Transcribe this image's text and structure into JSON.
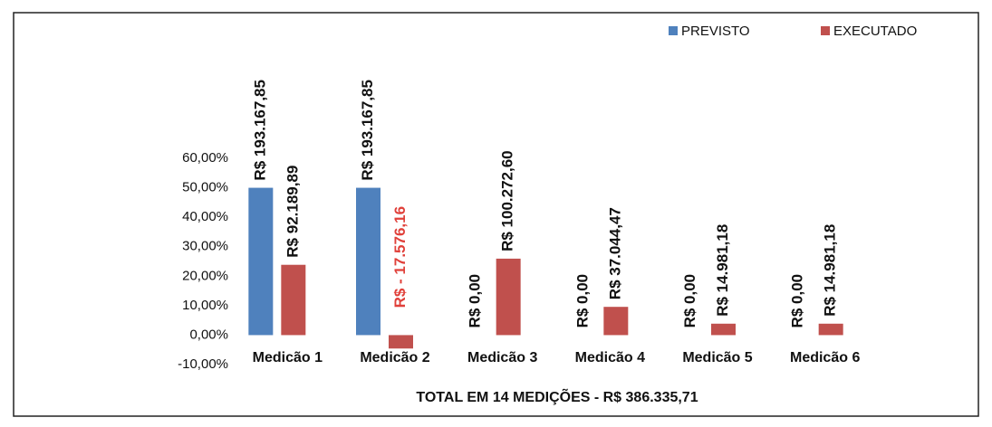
{
  "chart_data": {
    "type": "bar",
    "x_label": "TOTAL EM 14 MEDIÇÕES - R$ 386.335,71",
    "categories": [
      "Medicão 1",
      "Medicão 2",
      "Medicão 3",
      "Medicão 4",
      "Medicão 5",
      "Medicão 6"
    ],
    "series": [
      {
        "name": "PREVISTO",
        "color": "#4f81bd",
        "values": [
          50,
          50,
          0,
          0,
          0,
          0
        ],
        "data_labels": [
          {
            "value": 193167.85,
            "label": "R$ 193.167,85"
          },
          {
            "value": 193167.85,
            "label": "R$ 193.167,85"
          },
          {
            "value": 0,
            "label": "R$ 0,00"
          },
          {
            "value": 0,
            "label": "R$ 0,00"
          },
          {
            "value": 0,
            "label": "R$ 0,00"
          },
          {
            "value": 0,
            "label": "R$ 0,00"
          }
        ]
      },
      {
        "name": "EXECUTADO",
        "color": "#c0504d",
        "values": [
          23.86,
          -4.55,
          25.95,
          9.59,
          3.88,
          3.88
        ],
        "data_labels": [
          {
            "value": 92189.89,
            "label": "R$ 92.189,89"
          },
          {
            "value": -17576.16,
            "label": "R$ - 17.576,16",
            "color": "#e0403a"
          },
          {
            "value": 100272.6,
            "label": "R$ 100.272,60"
          },
          {
            "value": 37044.47,
            "label": "R$ 37.044,47"
          },
          {
            "value": 14981.18,
            "label": "R$ 14.981,18"
          },
          {
            "value": 14981.18,
            "label": "R$ 14.981,18"
          }
        ]
      }
    ],
    "ylim": [
      -10,
      60
    ],
    "yticks": [
      {
        "value": -10,
        "label": "-10,00%"
      },
      {
        "value": 0,
        "label": "0,00%"
      },
      {
        "value": 10,
        "label": "10,00%"
      },
      {
        "value": 20,
        "label": "20,00%"
      },
      {
        "value": 30,
        "label": "30,00%"
      },
      {
        "value": 40,
        "label": "40,00%"
      },
      {
        "value": 50,
        "label": "50,00%"
      },
      {
        "value": 60,
        "label": "60,00%"
      }
    ],
    "grid": false,
    "legend": "top-right"
  }
}
